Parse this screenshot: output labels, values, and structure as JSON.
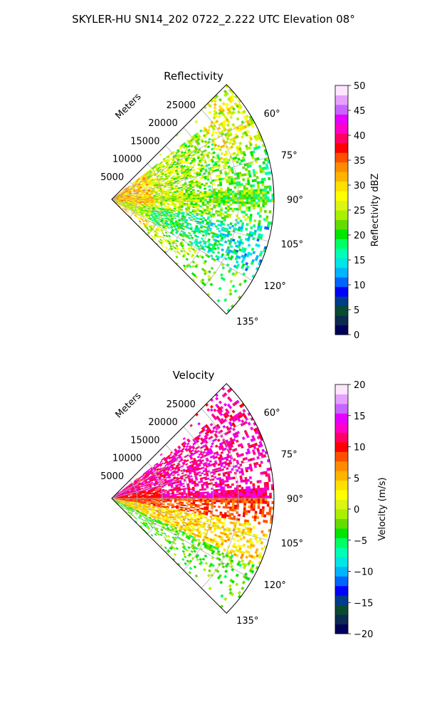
{
  "suptitle": "SKYLER-HU  SN14_202  0722_2.222 UTC Elevation 08°",
  "chart_data": [
    {
      "type": "polar-sector",
      "title": "Reflectivity",
      "range_label": "Meters",
      "theta_range_deg": [
        45,
        135
      ],
      "r_max_m": 32000,
      "range_ticks": [
        "5000",
        "10000",
        "15000",
        "20000",
        "25000"
      ],
      "angle_ticks": [
        "60°",
        "75°",
        "90°",
        "105°",
        "120°",
        "135°"
      ],
      "colorbar": {
        "label": "Reflectivity dBZ",
        "range": [
          0,
          50
        ],
        "ticks": [
          "0",
          "5",
          "10",
          "15",
          "20",
          "25",
          "30",
          "35",
          "40",
          "45",
          "50"
        ]
      },
      "dominant_values_description": "",
      "colors": [
        "#00005a",
        "#0a2a50",
        "#0a4a30",
        "#003c8c",
        "#0000ff",
        "#0064ff",
        "#00b4ff",
        "#00e6e6",
        "#00ffb4",
        "#00ff64",
        "#00e600",
        "#64dc00",
        "#aaf000",
        "#dcf514",
        "#ffff00",
        "#ffe100",
        "#ffb400",
        "#ff8c00",
        "#ff5000",
        "#ff0000",
        "#ff0064",
        "#ff00c8",
        "#e600ff",
        "#c864ff",
        "#e6a0ff",
        "#ffe6ff"
      ]
    },
    {
      "type": "polar-sector",
      "title": "Velocity",
      "range_label": "Meters",
      "theta_range_deg": [
        45,
        135
      ],
      "r_max_m": 32000,
      "range_ticks": [
        "5000",
        "10000",
        "15000",
        "20000",
        "25000"
      ],
      "angle_ticks": [
        "60°",
        "75°",
        "90°",
        "105°",
        "120°",
        "135°"
      ],
      "colorbar": {
        "label": "Velocity (m/s)",
        "range": [
          -20,
          20
        ],
        "ticks": [
          "−20",
          "−15",
          "−10",
          "−5",
          "0",
          "5",
          "10",
          "15",
          "20"
        ]
      },
      "colors": [
        "#00005a",
        "#0a2a50",
        "#0a4a30",
        "#003c8c",
        "#0000ff",
        "#0064ff",
        "#00b4ff",
        "#00e6e6",
        "#00ffb4",
        "#00ff64",
        "#00e600",
        "#64dc00",
        "#aaf000",
        "#dcf514",
        "#ffff00",
        "#ffe100",
        "#ffb400",
        "#ff8c00",
        "#ff5000",
        "#ff0000",
        "#ff0064",
        "#ff00c8",
        "#e600ff",
        "#c864ff",
        "#e6a0ff",
        "#ffe6ff"
      ]
    }
  ]
}
